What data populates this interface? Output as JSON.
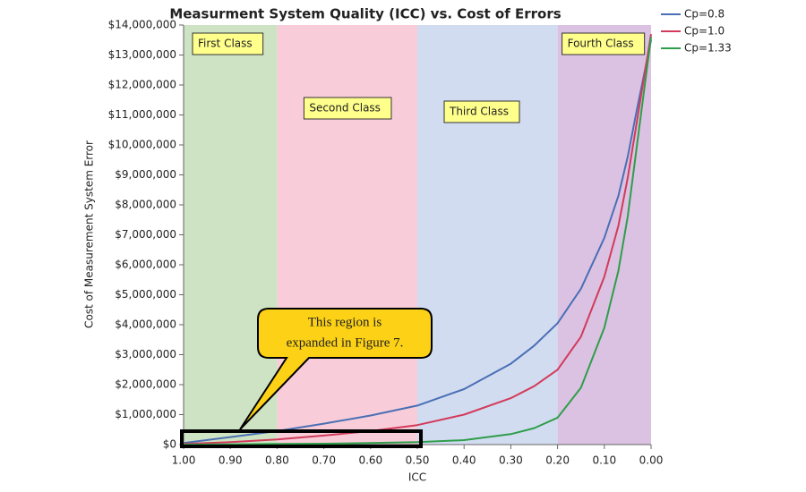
{
  "chart_data": {
    "type": "line",
    "title": "Measurment System Quality (ICC) vs. Cost of Errors",
    "x_label": "ICC",
    "y_label": "Cost of Measurement System Error",
    "xlim": [
      1,
      0
    ],
    "xticks": [
      {
        "value": 1,
        "label": "1.00"
      },
      {
        "value": 0.9,
        "label": "0.90"
      },
      {
        "value": 0.8,
        "label": "0.80"
      },
      {
        "value": 0.7,
        "label": "0.70"
      },
      {
        "value": 0.6,
        "label": "0.60"
      },
      {
        "value": 0.5,
        "label": "0.50"
      },
      {
        "value": 0.4,
        "label": "0.40"
      },
      {
        "value": 0.3,
        "label": "0.30"
      },
      {
        "value": 0.2,
        "label": "0.20"
      },
      {
        "value": 0.1,
        "label": "0.10"
      },
      {
        "value": 0,
        "label": "0.00"
      }
    ],
    "ylim": [
      0,
      14000000
    ],
    "yticks": [
      {
        "value": 0,
        "label": "$0"
      },
      {
        "value": 1000000,
        "label": "$1,000,000"
      },
      {
        "value": 2000000,
        "label": "$2,000,000"
      },
      {
        "value": 3000000,
        "label": "$3,000,000"
      },
      {
        "value": 4000000,
        "label": "$4,000,000"
      },
      {
        "value": 5000000,
        "label": "$5,000,000"
      },
      {
        "value": 6000000,
        "label": "$6,000,000"
      },
      {
        "value": 7000000,
        "label": "$7,000,000"
      },
      {
        "value": 8000000,
        "label": "$8,000,000"
      },
      {
        "value": 9000000,
        "label": "$9,000,000"
      },
      {
        "value": 10000000,
        "label": "$10,000,000"
      },
      {
        "value": 11000000,
        "label": "$11,000,000"
      },
      {
        "value": 12000000,
        "label": "$12,000,000"
      },
      {
        "value": 13000000,
        "label": "$13,000,000"
      },
      {
        "value": 14000000,
        "label": "$14,000,000"
      }
    ],
    "regions": [
      {
        "label": "First Class",
        "from": 1,
        "to": 0.8,
        "color": "#cde3c3"
      },
      {
        "label": "Second Class",
        "from": 0.8,
        "to": 0.5,
        "color": "#f8cdd9"
      },
      {
        "label": "Third Class",
        "from": 0.5,
        "to": 0.2,
        "color": "#d2dcf1"
      },
      {
        "label": "Fourth Class",
        "from": 0.2,
        "to": 0,
        "color": "#dbc2e2"
      }
    ],
    "annotation": [
      "This region is",
      "expanded in Figure 7."
    ],
    "x": [
      1,
      0.9,
      0.8,
      0.7,
      0.6,
      0.5,
      0.4,
      0.3,
      0.25,
      0.2,
      0.15,
      0.1,
      0.07,
      0.05,
      0.03,
      0
    ],
    "series": [
      {
        "name": "Cp=0.8",
        "color": "#4a6fb5",
        "values": [
          50000,
          250000,
          450000,
          700000,
          970000,
          1300000,
          1850000,
          2700000,
          3300000,
          4050000,
          5200000,
          6900000,
          8300000,
          9600000,
          11200000,
          13500000
        ]
      },
      {
        "name": "Cp=1.0",
        "color": "#d23b5a",
        "values": [
          20000,
          80000,
          170000,
          300000,
          450000,
          650000,
          1000000,
          1550000,
          1950000,
          2500000,
          3600000,
          5600000,
          7300000,
          8900000,
          10800000,
          13700000
        ]
      },
      {
        "name": "Cp=1.33",
        "color": "#2e9e4a",
        "values": [
          0,
          10000,
          20000,
          30000,
          50000,
          80000,
          150000,
          350000,
          550000,
          900000,
          1900000,
          3900000,
          5800000,
          7600000,
          10000000,
          13600000
        ]
      }
    ],
    "legend": "top-right"
  }
}
